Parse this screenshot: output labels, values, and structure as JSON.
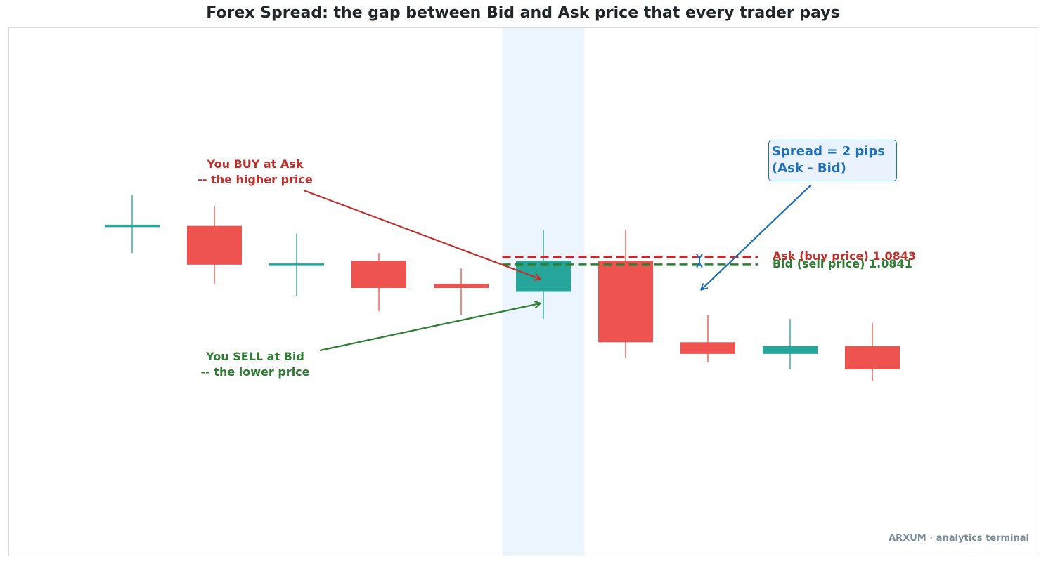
{
  "chart_data": {
    "type": "candlestick",
    "title": "Forex Spread: the gap between Bid and Ask price that every trader pays",
    "xlabel": "",
    "ylabel": "",
    "grid": false,
    "ylim": [
      1.0766,
      1.0902
    ],
    "highlight_candle_index": 5,
    "colors": {
      "up": "#26a69a",
      "down": "#ef5350",
      "ask": "#c62828",
      "bid": "#2e7d32",
      "spread": "#1f6fb5",
      "highlight": "#eaf4fe"
    },
    "candles": [
      {
        "open": 1.0851,
        "high": 1.0859,
        "low": 1.0844,
        "close": 1.0851
      },
      {
        "open": 1.0851,
        "high": 1.0856,
        "low": 1.0836,
        "close": 1.0841
      },
      {
        "open": 1.0841,
        "high": 1.0849,
        "low": 1.0833,
        "close": 1.0841
      },
      {
        "open": 1.0842,
        "high": 1.0844,
        "low": 1.0829,
        "close": 1.0835
      },
      {
        "open": 1.0836,
        "high": 1.084,
        "low": 1.0828,
        "close": 1.0835
      },
      {
        "open": 1.0834,
        "high": 1.085,
        "low": 1.0827,
        "close": 1.0842
      },
      {
        "open": 1.0842,
        "high": 1.085,
        "low": 1.0817,
        "close": 1.0821
      },
      {
        "open": 1.0821,
        "high": 1.0828,
        "low": 1.0816,
        "close": 1.0818
      },
      {
        "open": 1.0818,
        "high": 1.0827,
        "low": 1.0814,
        "close": 1.082
      },
      {
        "open": 1.082,
        "high": 1.0826,
        "low": 1.0811,
        "close": 1.0814
      }
    ],
    "ask": {
      "value": 1.0843,
      "label": "Ask (buy price)  1.0843"
    },
    "bid": {
      "value": 1.0841,
      "label": "Bid (sell price)  1.0841"
    },
    "annotations": {
      "buy": [
        "You BUY at Ask",
        "-- the higher price"
      ],
      "sell": [
        "You SELL at Bid",
        "-- the lower price"
      ],
      "spread": [
        "Spread = 2 pips",
        "(Ask - Bid)"
      ]
    }
  },
  "watermark": "ARXUM · analytics terminal"
}
